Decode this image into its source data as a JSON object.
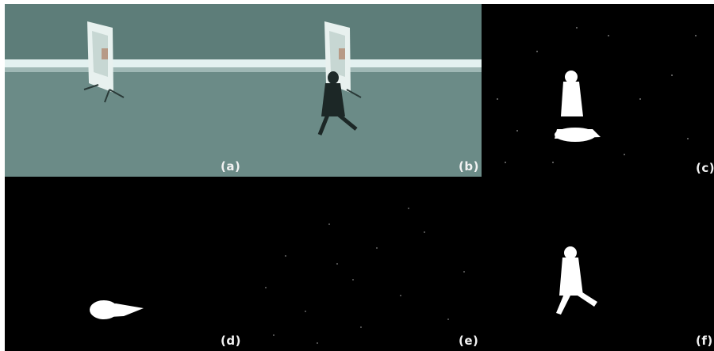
{
  "panels": [
    {
      "id": "a",
      "label": "(a)",
      "content": "background frame"
    },
    {
      "id": "b",
      "label": "(b)",
      "content": "current frame with walking person"
    },
    {
      "id": "c",
      "label": "(c)",
      "content": "foreground mask with shadow"
    },
    {
      "id": "d",
      "label": "(d)",
      "content": "shadow mask"
    },
    {
      "id": "e",
      "label": "(e)",
      "content": "noise mask"
    },
    {
      "id": "f",
      "label": "(f)",
      "content": "person silhouette mask"
    }
  ],
  "colors": {
    "scene_top": "#5c7c78",
    "scene_ground": "#6a8a86",
    "wall": "#e6f3f2",
    "mask": "#000000",
    "blob": "#ffffff"
  }
}
